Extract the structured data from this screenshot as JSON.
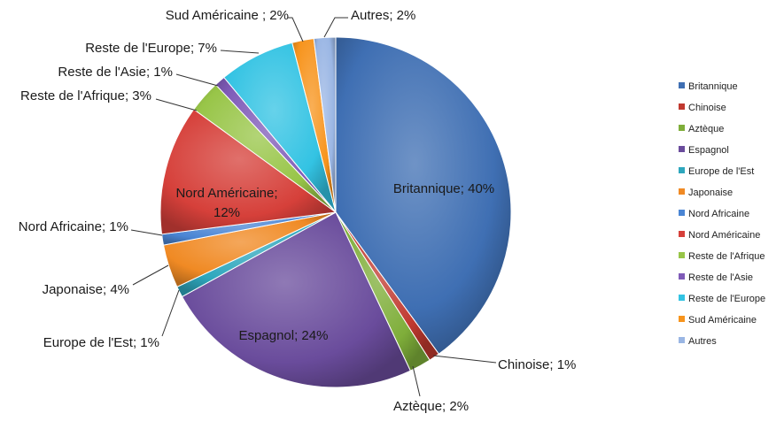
{
  "chart_data": {
    "type": "pie",
    "title": "",
    "start_angle_deg": 0,
    "direction": "clockwise",
    "legend_position": "right",
    "slices": [
      {
        "label": "Britannique",
        "value": 40,
        "display": "Britannique; 40%",
        "color": "#3f6fb3"
      },
      {
        "label": "Chinoise",
        "value": 1,
        "display": "Chinoise; 1%",
        "color": "#c0392f"
      },
      {
        "label": "Aztèque",
        "value": 2,
        "display": "Aztèque; 2%",
        "color": "#7fae3a"
      },
      {
        "label": "Espagnol",
        "value": 24,
        "display": "Espagnol; 24%",
        "color": "#6a4c9c"
      },
      {
        "label": "Europe de l'Est",
        "value": 1,
        "display": "Europe de l'Est; 1%",
        "color": "#2ea7bd"
      },
      {
        "label": "Japonaise",
        "value": 4,
        "display": "Japonaise; 4%",
        "color": "#f08a24"
      },
      {
        "label": "Nord Africaine",
        "value": 1,
        "display": "Nord Africaine; 1%",
        "color": "#4a85d4"
      },
      {
        "label": "Nord Américaine",
        "value": 12,
        "display": "Nord Américaine;\n12%",
        "color": "#d6403a"
      },
      {
        "label": "Reste de l'Afrique",
        "value": 3,
        "display": "Reste de l'Afrique; 3%",
        "color": "#98c548"
      },
      {
        "label": "Reste de l'Asie",
        "value": 1,
        "display": "Reste de l'Asie; 1%",
        "color": "#7f5bb8"
      },
      {
        "label": "Reste de l'Europe",
        "value": 7,
        "display": "Reste de l'Europe; 7%",
        "color": "#33c3e3"
      },
      {
        "label": "Sud Américaine",
        "value": 2,
        "display": "Sud Américaine ; 2%",
        "color": "#f7941d"
      },
      {
        "label": "Autres",
        "value": 2,
        "display": "Autres; 2%",
        "color": "#9ab6e4"
      }
    ]
  }
}
